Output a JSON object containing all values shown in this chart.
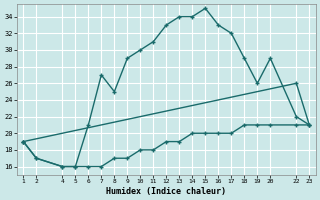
{
  "xlabel": "Humidex (Indice chaleur)",
  "bg_color": "#cce8e8",
  "grid_color": "#ffffff",
  "line_color": "#1a6b6b",
  "xlim": [
    0.5,
    23.5
  ],
  "ylim": [
    15,
    35.5
  ],
  "xticks": [
    1,
    2,
    4,
    5,
    6,
    7,
    8,
    9,
    10,
    11,
    12,
    13,
    14,
    15,
    16,
    17,
    18,
    19,
    20,
    22,
    23
  ],
  "yticks": [
    16,
    18,
    20,
    22,
    24,
    26,
    28,
    30,
    32,
    34
  ],
  "line1_x": [
    1,
    2,
    4,
    5,
    6,
    7,
    8,
    9,
    10,
    11,
    12,
    13,
    14,
    15,
    16,
    17,
    18,
    19,
    20,
    22,
    23
  ],
  "line1_y": [
    19,
    17,
    16,
    16,
    21,
    27,
    25,
    29,
    30,
    31,
    33,
    34,
    34,
    35,
    33,
    32,
    29,
    26,
    29,
    22,
    21
  ],
  "line2_x": [
    1,
    22,
    23
  ],
  "line2_y": [
    19,
    26,
    21
  ],
  "line3_x": [
    1,
    2,
    4,
    5,
    6,
    7,
    8,
    9,
    10,
    11,
    12,
    13,
    14,
    15,
    16,
    17,
    18,
    19,
    20,
    22,
    23
  ],
  "line3_y": [
    19,
    17,
    16,
    16,
    16,
    16,
    17,
    17,
    18,
    18,
    19,
    19,
    20,
    20,
    20,
    20,
    21,
    21,
    21,
    21,
    21
  ]
}
